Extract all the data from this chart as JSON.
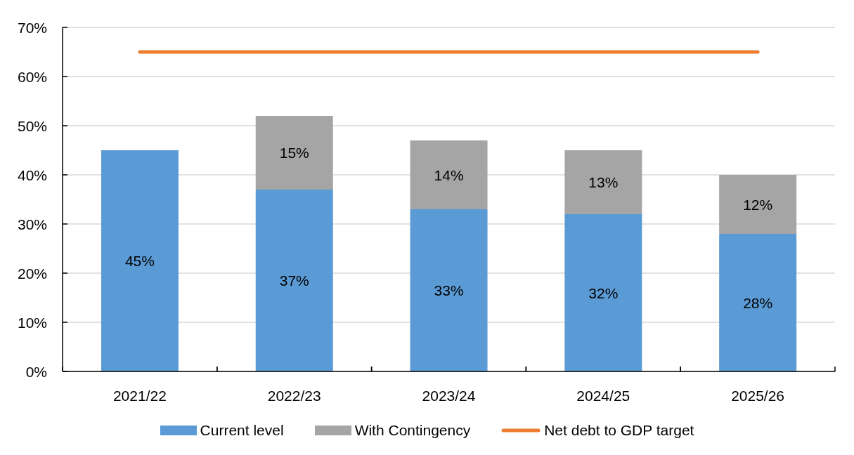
{
  "chart_data": {
    "type": "bar",
    "stacked": true,
    "categories": [
      "2021/22",
      "2022/23",
      "2023/24",
      "2024/25",
      "2025/26"
    ],
    "series": [
      {
        "name": "Current level",
        "color": "#5b9bd5",
        "values": [
          45,
          37,
          33,
          32,
          28
        ],
        "value_labels": [
          "45%",
          "37%",
          "33%",
          "32%",
          "28%"
        ]
      },
      {
        "name": "With Contingency",
        "color": "#a5a5a5",
        "values": [
          null,
          15,
          14,
          13,
          12
        ],
        "value_labels": [
          null,
          "15%",
          "14%",
          "13%",
          "12%"
        ]
      },
      {
        "name": "Net debt to GDP target",
        "type": "line",
        "color": "#ed7d31",
        "values": [
          65,
          65,
          65,
          65,
          65
        ]
      }
    ],
    "ylim": [
      0,
      70
    ],
    "yticks": [
      {
        "value": 0,
        "label": "0%"
      },
      {
        "value": 10,
        "label": "10%"
      },
      {
        "value": 20,
        "label": "20%"
      },
      {
        "value": 30,
        "label": "30%"
      },
      {
        "value": 40,
        "label": "40%"
      },
      {
        "value": 50,
        "label": "50%"
      },
      {
        "value": 60,
        "label": "60%"
      },
      {
        "value": 70,
        "label": "70%"
      }
    ],
    "grid": "y",
    "legend": "bottom"
  }
}
